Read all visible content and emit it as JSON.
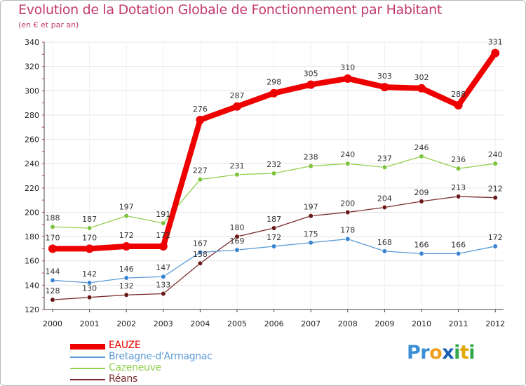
{
  "chart_data": {
    "type": "line",
    "title": "Evolution de la Dotation Globale de Fonctionnement par Habitant",
    "subtitle": "(en € et par an)",
    "categories": [
      "2000",
      "2001",
      "2002",
      "2003",
      "2004",
      "2005",
      "2006",
      "2007",
      "2008",
      "2009",
      "2010",
      "2011",
      "2012"
    ],
    "ylim": [
      120,
      340
    ],
    "yticks": [
      120,
      140,
      160,
      180,
      200,
      220,
      240,
      260,
      280,
      300,
      320,
      340
    ],
    "grid": "horizontal",
    "series": [
      {
        "name": "EAUZE",
        "color": "#ee0000",
        "values": [
          170,
          170,
          172,
          172,
          276,
          287,
          298,
          305,
          310,
          303,
          302,
          288,
          331
        ],
        "labels": [
          "170",
          "170",
          "172",
          "172",
          "276",
          "287",
          "298",
          "305",
          "310",
          "303",
          "302",
          "288",
          "331"
        ]
      },
      {
        "name": "Bretagne-d'Armagnac",
        "color": "#5b9bd5",
        "values": [
          144,
          142,
          146,
          147,
          167,
          169,
          172,
          175,
          178,
          168,
          166,
          166,
          172
        ],
        "labels": [
          "144",
          "142",
          "146",
          "147",
          "167",
          "169",
          "172",
          "175",
          "178",
          "168",
          "166",
          "166",
          "172"
        ]
      },
      {
        "name": "Cazeneuve",
        "color": "#92d050",
        "values": [
          188,
          187,
          197,
          191,
          227,
          231,
          232,
          238,
          240,
          237,
          246,
          236,
          240
        ],
        "labels": [
          "188",
          "187",
          "197",
          "191",
          "227",
          "231",
          "232",
          "238",
          "240",
          "237",
          "246",
          "236",
          "240"
        ]
      },
      {
        "name": "Réans",
        "color": "#7b2c2c",
        "values": [
          128,
          130,
          132,
          133,
          158,
          180,
          187,
          197,
          200,
          204,
          209,
          213,
          212
        ],
        "labels": [
          "128",
          "130",
          "132",
          "133",
          "158",
          "180",
          "187",
          "197",
          "200",
          "204",
          "209",
          "213",
          "212"
        ]
      }
    ]
  },
  "brand": {
    "text": "Proxiti",
    "letters": [
      "P",
      "r",
      "o",
      "x",
      "i",
      "t",
      "i"
    ],
    "colors": [
      "#3b8fd6",
      "#3b8fd6",
      "#f0a020",
      "#1a5fb4",
      "#2ea84a",
      "#e0a800",
      "#2ea84a"
    ]
  }
}
